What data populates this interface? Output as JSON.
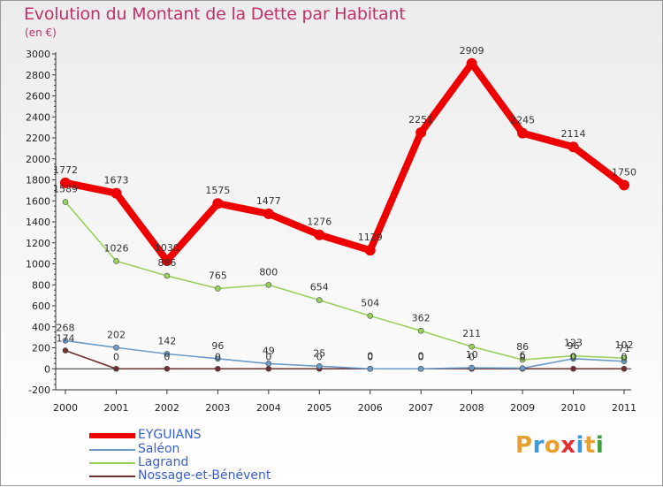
{
  "title": "Evolution du Montant de la Dette par Habitant",
  "subtitle": "(en €)",
  "logo_text": "Proxiti",
  "logo_colors": [
    "#e8a030",
    "#3b9ad8",
    "#e8a030",
    "#e03030",
    "#3b9ad8",
    "#e8a030",
    "#40a040"
  ],
  "chart_data": {
    "type": "line",
    "x": [
      "2000",
      "2001",
      "2002",
      "2003",
      "2004",
      "2005",
      "2006",
      "2007",
      "2008",
      "2009",
      "2010",
      "2011"
    ],
    "ylim": [
      -200,
      3000
    ],
    "yticks": [
      -200,
      0,
      200,
      400,
      600,
      800,
      1000,
      1200,
      1400,
      1600,
      1800,
      2000,
      2200,
      2400,
      2600,
      2800,
      3000
    ],
    "grid": false,
    "legend_position": "bottom-left",
    "series": [
      {
        "name": "EYGUIANS",
        "color": "#ee0000",
        "values": [
          1772,
          1673,
          1030,
          1575,
          1477,
          1276,
          1129,
          2251,
          2909,
          2245,
          2114,
          1750
        ],
        "labels": [
          "1772",
          "1673",
          "1030",
          "1575",
          "1477",
          "1276",
          "1129",
          "2251",
          "2909",
          "2245",
          "2114",
          "1750"
        ]
      },
      {
        "name": "Saléon",
        "color": "#6b9bc9",
        "values": [
          268,
          202,
          142,
          96,
          49,
          25,
          0,
          0,
          10,
          6,
          96,
          71
        ],
        "labels": [
          "268",
          "202",
          "142",
          "96",
          "49",
          "25",
          "0",
          "0",
          "10",
          "6",
          "96",
          "71"
        ]
      },
      {
        "name": "Lagrand",
        "color": "#99d05a",
        "values": [
          1589,
          1026,
          886,
          765,
          800,
          654,
          504,
          362,
          211,
          86,
          123,
          102
        ],
        "labels": [
          "1589",
          "1026",
          "886",
          "765",
          "800",
          "654",
          "504",
          "362",
          "211",
          "86",
          "123",
          "102"
        ]
      },
      {
        "name": "Nossage-et-Bénévent",
        "color": "#6e3030",
        "values": [
          174,
          0,
          0,
          0,
          0,
          0,
          0,
          0,
          0,
          0,
          0,
          0
        ],
        "labels": [
          "174",
          "0",
          "0",
          "0",
          "0",
          "0",
          "0",
          "0",
          "0",
          "0",
          "0",
          "0"
        ]
      }
    ]
  }
}
